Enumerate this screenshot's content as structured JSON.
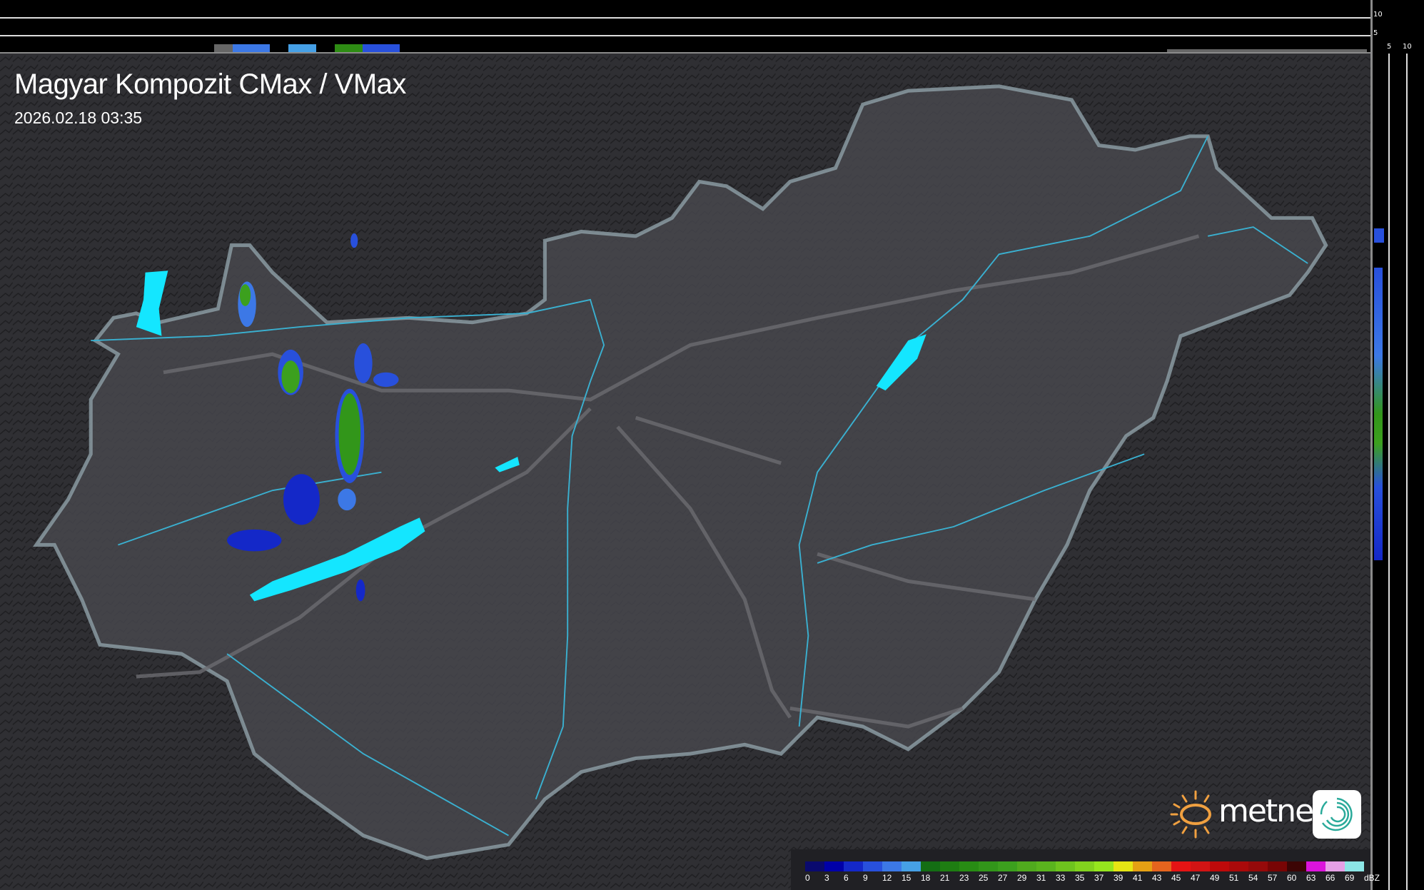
{
  "header": {
    "title": "Magyar Kompozit CMax / VMax",
    "timestamp": "2026.02.18 03:35"
  },
  "profile_axes": {
    "top_labels": [
      "10",
      "5"
    ],
    "right_labels": [
      "5",
      "10"
    ]
  },
  "legend": {
    "unit": "dBZ",
    "items": [
      {
        "label": "0",
        "color": "#0a0a6e"
      },
      {
        "label": "3",
        "color": "#0000a8"
      },
      {
        "label": "6",
        "color": "#1428c8"
      },
      {
        "label": "9",
        "color": "#2850dc"
      },
      {
        "label": "12",
        "color": "#3c78e6"
      },
      {
        "label": "15",
        "color": "#46a0e6"
      },
      {
        "label": "18",
        "color": "#146e14"
      },
      {
        "label": "21",
        "color": "#1e7d12"
      },
      {
        "label": "23",
        "color": "#288c14"
      },
      {
        "label": "25",
        "color": "#32961a"
      },
      {
        "label": "27",
        "color": "#3ca01e"
      },
      {
        "label": "29",
        "color": "#50aa1e"
      },
      {
        "label": "31",
        "color": "#5ab41e"
      },
      {
        "label": "33",
        "color": "#6ec31e"
      },
      {
        "label": "35",
        "color": "#82d21e"
      },
      {
        "label": "37",
        "color": "#96e61e"
      },
      {
        "label": "39",
        "color": "#e6e614"
      },
      {
        "label": "41",
        "color": "#e6a014"
      },
      {
        "label": "43",
        "color": "#e6641e"
      },
      {
        "label": "45",
        "color": "#e61414"
      },
      {
        "label": "47",
        "color": "#d21414"
      },
      {
        "label": "49",
        "color": "#be0a0a"
      },
      {
        "label": "51",
        "color": "#aa0a0a"
      },
      {
        "label": "54",
        "color": "#960a0a"
      },
      {
        "label": "57",
        "color": "#780505"
      },
      {
        "label": "60",
        "color": "#3c0505"
      },
      {
        "label": "63",
        "color": "#dc14dc"
      },
      {
        "label": "66",
        "color": "#e6a0e6"
      },
      {
        "label": "69",
        "color": "#8ce6e6"
      }
    ]
  },
  "logo": {
    "text": "metnet",
    "sun_color": "#f0a040",
    "icon_color": "#2aaa9a"
  },
  "colors": {
    "background": "#2e2e32",
    "country": "#4a4a50",
    "border": "#8fa8b4",
    "river": "#3ab0d0",
    "lake": "#14e6ff",
    "road": "#6c6c70"
  }
}
